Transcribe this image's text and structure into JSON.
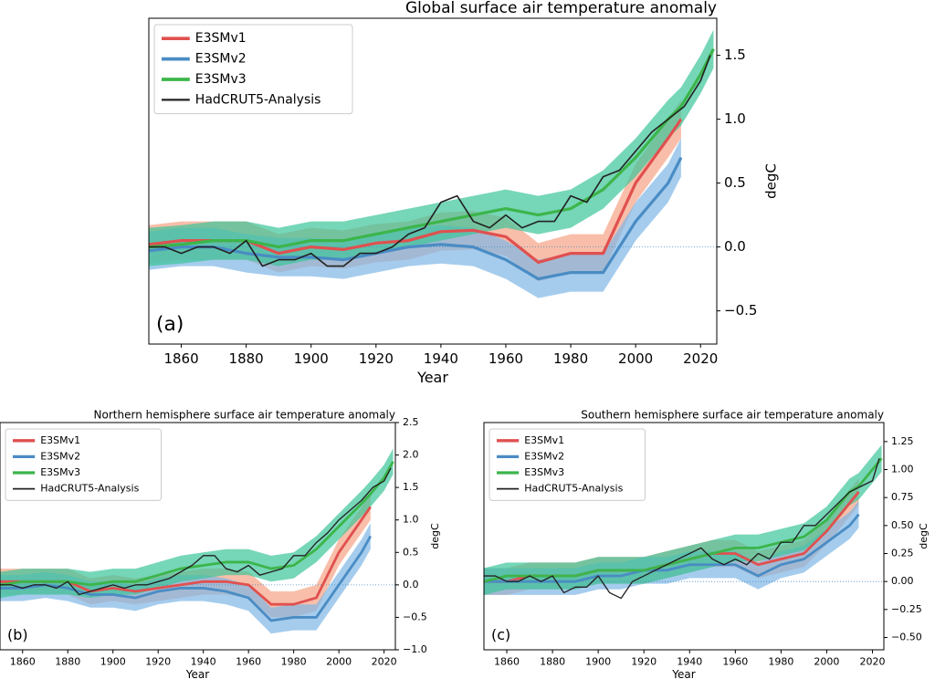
{
  "chart_data": [
    {
      "type": "line",
      "title": "Global surface air temperature anomaly",
      "annotation": "(a)",
      "xlabel": "Year",
      "ylabel": "degC",
      "xlim": [
        1850,
        2025
      ],
      "ylim": [
        -0.76,
        1.79
      ],
      "xticks": [
        1860,
        1880,
        1900,
        1920,
        1940,
        1960,
        1980,
        2000,
        2020
      ],
      "yticks": [
        {
          "value": -0.5,
          "label": "−0.5"
        },
        {
          "value": 0,
          "label": "0.0"
        },
        0.5,
        {
          "value": 1,
          "label": "1.0"
        },
        1.5
      ],
      "legend": "upper left",
      "series": [
        {
          "name": "E3SMv1",
          "color": "#e0504f",
          "band_color": "#f5a385",
          "band": 0.15,
          "x": [
            1850,
            1860,
            1870,
            1880,
            1890,
            1900,
            1910,
            1920,
            1930,
            1940,
            1950,
            1960,
            1970,
            1980,
            1990,
            2000,
            2010,
            2014
          ],
          "values": [
            0.02,
            0.05,
            0.05,
            0.05,
            -0.05,
            0.0,
            -0.02,
            0.03,
            0.05,
            0.12,
            0.13,
            0.08,
            -0.12,
            -0.05,
            -0.05,
            0.5,
            0.85,
            1.0
          ]
        },
        {
          "name": "E3SMv2",
          "color": "#4a8cc4",
          "band_color": "#7fb7e6",
          "band": 0.15,
          "x": [
            1850,
            1860,
            1870,
            1880,
            1890,
            1900,
            1910,
            1920,
            1930,
            1940,
            1950,
            1960,
            1970,
            1980,
            1990,
            2000,
            2010,
            2014
          ],
          "values": [
            -0.03,
            0.0,
            0.0,
            -0.05,
            -0.08,
            -0.08,
            -0.1,
            -0.05,
            0.0,
            0.02,
            0.0,
            -0.1,
            -0.25,
            -0.2,
            -0.2,
            0.2,
            0.5,
            0.7
          ]
        },
        {
          "name": "E3SMv3",
          "color": "#3cb54a",
          "band_color": "#3cc49a",
          "band": 0.15,
          "x": [
            1850,
            1860,
            1870,
            1880,
            1890,
            1900,
            1910,
            1920,
            1930,
            1940,
            1950,
            1960,
            1970,
            1980,
            1990,
            2000,
            2010,
            2014,
            2020,
            2024
          ],
          "values": [
            0.0,
            0.02,
            0.05,
            0.05,
            0.0,
            0.05,
            0.05,
            0.1,
            0.15,
            0.2,
            0.25,
            0.3,
            0.25,
            0.3,
            0.45,
            0.7,
            1.0,
            1.1,
            1.35,
            1.55
          ]
        },
        {
          "name": "HadCRUT5-Analysis",
          "color": "#222222",
          "x": [
            1850,
            1855,
            1860,
            1865,
            1870,
            1875,
            1880,
            1885,
            1890,
            1895,
            1900,
            1905,
            1910,
            1915,
            1920,
            1925,
            1930,
            1935,
            1940,
            1945,
            1950,
            1955,
            1960,
            1965,
            1970,
            1975,
            1980,
            1985,
            1990,
            1995,
            2000,
            2005,
            2010,
            2015,
            2020,
            2023
          ],
          "values": [
            0.0,
            0.0,
            -0.05,
            0.0,
            0.0,
            -0.05,
            0.05,
            -0.15,
            -0.1,
            -0.1,
            -0.05,
            -0.15,
            -0.15,
            -0.05,
            -0.05,
            0.0,
            0.1,
            0.15,
            0.35,
            0.4,
            0.2,
            0.15,
            0.25,
            0.15,
            0.2,
            0.2,
            0.4,
            0.35,
            0.55,
            0.6,
            0.75,
            0.9,
            1.0,
            1.1,
            1.3,
            1.5
          ]
        }
      ]
    },
    {
      "type": "line",
      "title": "Northern hemisphere surface air temperature anomaly",
      "annotation": "(b)",
      "xlabel": "Year",
      "ylabel": "degC",
      "xlim": [
        1850,
        2025
      ],
      "ylim": [
        -1.0,
        2.5
      ],
      "xticks": [
        1860,
        1880,
        1900,
        1920,
        1940,
        1960,
        1980,
        2000,
        2020
      ],
      "yticks": [
        {
          "value": -1,
          "label": "−1.0"
        },
        {
          "value": -0.5,
          "label": "−0.5"
        },
        {
          "value": 0,
          "label": "0.0"
        },
        0.5,
        {
          "value": 1,
          "label": "1.0"
        },
        1.5,
        {
          "value": 2,
          "label": "2.0"
        },
        2.5
      ],
      "legend": "upper left",
      "series": [
        {
          "name": "E3SMv1",
          "color": "#e0504f",
          "band_color": "#f5a385",
          "band": 0.2,
          "x": [
            1850,
            1860,
            1870,
            1880,
            1890,
            1900,
            1910,
            1920,
            1930,
            1940,
            1950,
            1960,
            1970,
            1980,
            1990,
            2000,
            2010,
            2014
          ],
          "values": [
            0.05,
            0.05,
            0.05,
            0.05,
            -0.1,
            -0.05,
            -0.1,
            -0.05,
            0.0,
            0.05,
            0.05,
            0.0,
            -0.3,
            -0.3,
            -0.2,
            0.5,
            1.0,
            1.2
          ]
        },
        {
          "name": "E3SMv2",
          "color": "#4a8cc4",
          "band_color": "#7fb7e6",
          "band": 0.2,
          "x": [
            1850,
            1860,
            1870,
            1880,
            1890,
            1900,
            1910,
            1920,
            1930,
            1940,
            1950,
            1960,
            1970,
            1980,
            1990,
            2000,
            2010,
            2014
          ],
          "values": [
            -0.05,
            -0.05,
            0.0,
            -0.05,
            -0.15,
            -0.15,
            -0.2,
            -0.1,
            -0.05,
            -0.05,
            -0.1,
            -0.2,
            -0.55,
            -0.5,
            -0.5,
            0.0,
            0.5,
            0.75
          ]
        },
        {
          "name": "E3SMv3",
          "color": "#3cb54a",
          "band_color": "#3cc49a",
          "band": 0.2,
          "x": [
            1850,
            1860,
            1870,
            1880,
            1890,
            1900,
            1910,
            1920,
            1930,
            1940,
            1950,
            1960,
            1970,
            1980,
            1990,
            2000,
            2010,
            2014,
            2020,
            2024
          ],
          "values": [
            0.0,
            0.05,
            0.05,
            0.05,
            0.0,
            0.05,
            0.05,
            0.15,
            0.25,
            0.3,
            0.35,
            0.35,
            0.25,
            0.3,
            0.55,
            0.9,
            1.25,
            1.4,
            1.65,
            1.9
          ]
        },
        {
          "name": "HadCRUT5-Analysis",
          "color": "#222222",
          "x": [
            1850,
            1855,
            1860,
            1865,
            1870,
            1875,
            1880,
            1885,
            1890,
            1895,
            1900,
            1905,
            1910,
            1915,
            1920,
            1925,
            1930,
            1935,
            1940,
            1945,
            1950,
            1955,
            1960,
            1965,
            1970,
            1975,
            1980,
            1985,
            1990,
            1995,
            2000,
            2005,
            2010,
            2015,
            2020,
            2023
          ],
          "values": [
            0.0,
            0.0,
            -0.05,
            0.0,
            0.0,
            -0.05,
            0.05,
            -0.15,
            -0.1,
            -0.05,
            0.0,
            -0.05,
            0.0,
            0.0,
            0.05,
            0.1,
            0.2,
            0.3,
            0.45,
            0.45,
            0.25,
            0.2,
            0.3,
            0.15,
            0.2,
            0.25,
            0.45,
            0.45,
            0.65,
            0.8,
            1.0,
            1.15,
            1.3,
            1.5,
            1.6,
            1.8
          ]
        }
      ]
    },
    {
      "type": "line",
      "title": "Southern hemisphere surface air temperature anomaly",
      "annotation": "(c)",
      "xlabel": "Year",
      "ylabel": "degC",
      "xlim": [
        1850,
        2025
      ],
      "ylim": [
        -0.61,
        1.42
      ],
      "xticks": [
        1860,
        1880,
        1900,
        1920,
        1940,
        1960,
        1980,
        2000,
        2020
      ],
      "yticks": [
        {
          "value": -0.5,
          "label": "−0.50"
        },
        {
          "value": -0.25,
          "label": "−0.25"
        },
        {
          "value": 0,
          "label": "0.00"
        },
        0.25,
        {
          "value": 0.5,
          "label": "0.50"
        },
        0.75,
        {
          "value": 1,
          "label": "1.00"
        },
        1.25
      ],
      "legend": "upper left",
      "series": [
        {
          "name": "E3SMv1",
          "color": "#e0504f",
          "band_color": "#f5a385",
          "band": 0.12,
          "x": [
            1850,
            1860,
            1870,
            1880,
            1890,
            1900,
            1910,
            1920,
            1930,
            1940,
            1950,
            1960,
            1970,
            1980,
            1990,
            2000,
            2010,
            2014
          ],
          "values": [
            0.0,
            0.0,
            0.05,
            0.05,
            0.05,
            0.1,
            0.1,
            0.1,
            0.15,
            0.2,
            0.25,
            0.25,
            0.15,
            0.2,
            0.25,
            0.45,
            0.7,
            0.8
          ]
        },
        {
          "name": "E3SMv2",
          "color": "#4a8cc4",
          "band_color": "#7fb7e6",
          "band": 0.12,
          "x": [
            1850,
            1860,
            1870,
            1880,
            1890,
            1900,
            1910,
            1920,
            1930,
            1940,
            1950,
            1960,
            1970,
            1980,
            1990,
            2000,
            2010,
            2014
          ],
          "values": [
            0.0,
            0.0,
            0.0,
            0.0,
            0.0,
            0.05,
            0.05,
            0.1,
            0.1,
            0.15,
            0.15,
            0.15,
            0.05,
            0.15,
            0.2,
            0.35,
            0.5,
            0.6
          ]
        },
        {
          "name": "E3SMv3",
          "color": "#3cb54a",
          "band_color": "#3cc49a",
          "band": 0.12,
          "x": [
            1850,
            1860,
            1870,
            1880,
            1890,
            1900,
            1910,
            1920,
            1930,
            1940,
            1950,
            1960,
            1970,
            1980,
            1990,
            2000,
            2010,
            2014,
            2020,
            2024
          ],
          "values": [
            0.0,
            0.05,
            0.05,
            0.05,
            0.05,
            0.1,
            0.1,
            0.1,
            0.15,
            0.2,
            0.25,
            0.3,
            0.3,
            0.35,
            0.4,
            0.55,
            0.8,
            0.85,
            1.0,
            1.1
          ]
        },
        {
          "name": "HadCRUT5-Analysis",
          "color": "#222222",
          "x": [
            1850,
            1855,
            1860,
            1865,
            1870,
            1875,
            1880,
            1885,
            1890,
            1895,
            1900,
            1905,
            1910,
            1915,
            1920,
            1925,
            1930,
            1935,
            1940,
            1945,
            1950,
            1955,
            1960,
            1965,
            1970,
            1975,
            1980,
            1985,
            1990,
            1995,
            2000,
            2005,
            2010,
            2015,
            2020,
            2023
          ],
          "values": [
            0.05,
            0.05,
            0.0,
            0.0,
            0.05,
            0.0,
            0.05,
            -0.1,
            -0.05,
            -0.05,
            0.05,
            -0.1,
            -0.15,
            0.0,
            0.05,
            0.1,
            0.15,
            0.2,
            0.25,
            0.3,
            0.2,
            0.15,
            0.2,
            0.15,
            0.25,
            0.2,
            0.35,
            0.35,
            0.5,
            0.5,
            0.6,
            0.7,
            0.8,
            0.85,
            0.9,
            1.1
          ]
        }
      ]
    }
  ]
}
